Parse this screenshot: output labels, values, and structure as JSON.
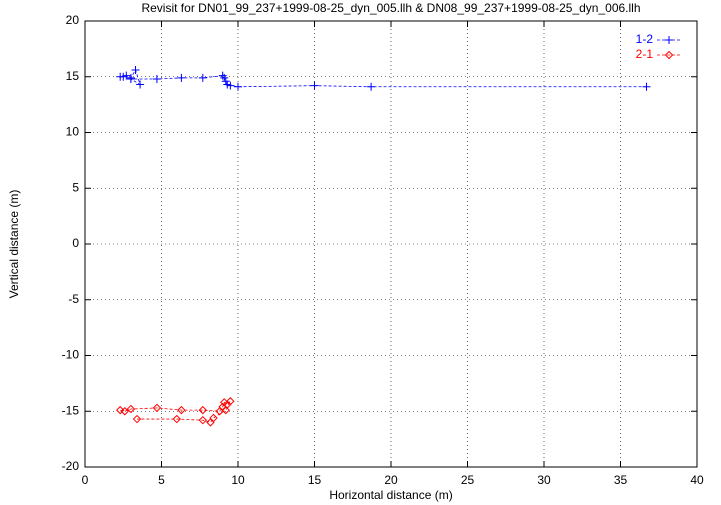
{
  "chart_data": {
    "type": "scatter",
    "title": "Revisit for DN01_99_237+1999-08-25_dyn_005.llh & DN08_99_237+1999-08-25_dyn_006.llh",
    "x_label": "Horizontal distance (m)",
    "y_label": "Vertical distance (m)",
    "xlim": [
      0,
      40
    ],
    "ylim": [
      -20,
      20
    ],
    "xticks": [
      0,
      5,
      10,
      15,
      20,
      25,
      30,
      35,
      40
    ],
    "yticks": [
      -20,
      -15,
      -10,
      -5,
      0,
      5,
      10,
      15,
      20
    ],
    "grid": true,
    "legend": "top-right",
    "line_style": "dashed",
    "series": [
      {
        "name": "1-2",
        "color": "#0000ff",
        "marker": "plus",
        "x": [
          2.3,
          2.5,
          2.7,
          3.0,
          3.3,
          3.6,
          3.0,
          4.7,
          6.3,
          7.7,
          9.0,
          9.1,
          9.2,
          9.3,
          9.5,
          10.0,
          15.0,
          18.7,
          36.7
        ],
        "values": [
          15.0,
          15.0,
          15.1,
          14.9,
          15.6,
          14.3,
          14.8,
          14.8,
          14.9,
          14.9,
          15.1,
          14.9,
          14.6,
          14.3,
          14.2,
          14.1,
          14.2,
          14.1,
          14.1
        ]
      },
      {
        "name": "2-1",
        "color": "#ff0000",
        "marker": "diamond",
        "x": [
          2.3,
          2.6,
          3.0,
          4.7,
          6.3,
          7.7,
          8.8,
          9.0,
          9.1,
          9.3,
          9.5,
          9.2,
          8.4,
          8.2,
          7.7,
          6.0,
          3.4
        ],
        "values": [
          -14.9,
          -15.0,
          -14.8,
          -14.7,
          -14.9,
          -14.9,
          -15.0,
          -14.6,
          -14.2,
          -14.4,
          -14.1,
          -14.9,
          -15.6,
          -16.0,
          -15.8,
          -15.7,
          -15.7
        ]
      }
    ]
  }
}
